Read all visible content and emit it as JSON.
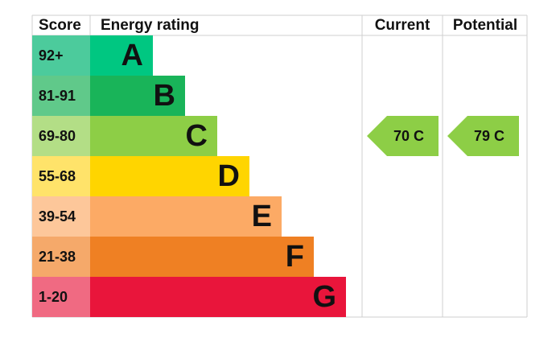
{
  "header": {
    "score": "Score",
    "rating": "Energy rating",
    "current": "Current",
    "potential": "Potential"
  },
  "bands": [
    {
      "score": "92+",
      "letter": "A",
      "color": "#00c781",
      "score_color": "#4ccb9c"
    },
    {
      "score": "81-91",
      "letter": "B",
      "color": "#19b459",
      "score_color": "#60c98a"
    },
    {
      "score": "69-80",
      "letter": "C",
      "color": "#8dce46",
      "score_color": "#b3de86"
    },
    {
      "score": "55-68",
      "letter": "D",
      "color": "#ffd500",
      "score_color": "#ffe36a"
    },
    {
      "score": "39-54",
      "letter": "E",
      "color": "#fcaa65",
      "score_color": "#fdc79a"
    },
    {
      "score": "21-38",
      "letter": "F",
      "color": "#ef8023",
      "score_color": "#f5a96a"
    },
    {
      "score": "1-20",
      "letter": "G",
      "color": "#e9153b",
      "score_color": "#f06a82"
    }
  ],
  "current": {
    "label": "70 C"
  },
  "potential": {
    "label": "79 C"
  }
}
